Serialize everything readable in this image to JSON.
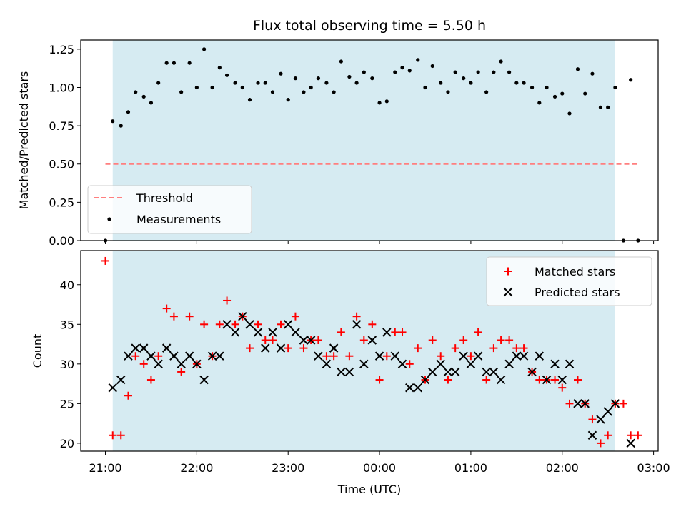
{
  "chart_data": [
    {
      "type": "scatter",
      "title": "Flux total observing time = 5.50 h",
      "xlabel": "",
      "ylabel": "Matched/Predicted stars",
      "ylim": [
        0,
        1.31
      ],
      "yticks": [
        "0.00",
        "0.25",
        "0.50",
        "0.75",
        "1.00",
        "1.25"
      ],
      "xlim_hours": [
        20.73,
        27.05
      ],
      "shaded_interval_hours": [
        21.08,
        26.58
      ],
      "legend": {
        "placement": "lower-left",
        "entries": [
          "Threshold",
          "Measurements"
        ]
      },
      "threshold": {
        "name": "Threshold",
        "value": 0.5,
        "x_range_hours": [
          21.0,
          26.83
        ],
        "color": "#ff7f7f",
        "style": "dashed"
      },
      "series": [
        {
          "name": "Measurements",
          "color": "#000000",
          "points": [
            [
              21.0,
              0.0
            ],
            [
              21.08,
              0.78
            ],
            [
              21.17,
              0.75
            ],
            [
              21.25,
              0.84
            ],
            [
              21.33,
              0.97
            ],
            [
              21.42,
              0.94
            ],
            [
              21.5,
              0.9
            ],
            [
              21.58,
              1.03
            ],
            [
              21.67,
              1.16
            ],
            [
              21.75,
              1.16
            ],
            [
              21.83,
              0.97
            ],
            [
              21.92,
              1.16
            ],
            [
              22.0,
              1.0
            ],
            [
              22.08,
              1.25
            ],
            [
              22.17,
              1.0
            ],
            [
              22.25,
              1.13
            ],
            [
              22.33,
              1.08
            ],
            [
              22.42,
              1.03
            ],
            [
              22.5,
              1.0
            ],
            [
              22.58,
              0.92
            ],
            [
              22.67,
              1.03
            ],
            [
              22.75,
              1.03
            ],
            [
              22.83,
              0.97
            ],
            [
              22.92,
              1.09
            ],
            [
              23.0,
              0.92
            ],
            [
              23.08,
              1.06
            ],
            [
              23.17,
              0.97
            ],
            [
              23.25,
              1.0
            ],
            [
              23.33,
              1.06
            ],
            [
              23.42,
              1.03
            ],
            [
              23.5,
              0.97
            ],
            [
              23.58,
              1.17
            ],
            [
              23.67,
              1.07
            ],
            [
              23.75,
              1.03
            ],
            [
              23.83,
              1.1
            ],
            [
              23.92,
              1.06
            ],
            [
              24.0,
              0.9
            ],
            [
              24.08,
              0.91
            ],
            [
              24.17,
              1.1
            ],
            [
              24.25,
              1.13
            ],
            [
              24.33,
              1.11
            ],
            [
              24.42,
              1.18
            ],
            [
              24.5,
              1.0
            ],
            [
              24.58,
              1.14
            ],
            [
              24.67,
              1.03
            ],
            [
              24.75,
              0.97
            ],
            [
              24.83,
              1.1
            ],
            [
              24.92,
              1.06
            ],
            [
              25.0,
              1.03
            ],
            [
              25.08,
              1.1
            ],
            [
              25.17,
              0.97
            ],
            [
              25.25,
              1.1
            ],
            [
              25.33,
              1.17
            ],
            [
              25.42,
              1.1
            ],
            [
              25.5,
              1.03
            ],
            [
              25.58,
              1.03
            ],
            [
              25.67,
              1.0
            ],
            [
              25.75,
              0.9
            ],
            [
              25.83,
              1.0
            ],
            [
              25.92,
              0.94
            ],
            [
              26.0,
              0.96
            ],
            [
              26.08,
              0.83
            ],
            [
              26.17,
              1.12
            ],
            [
              26.25,
              0.96
            ],
            [
              26.33,
              1.09
            ],
            [
              26.42,
              0.87
            ],
            [
              26.5,
              0.87
            ],
            [
              26.58,
              1.0
            ],
            [
              26.67,
              0.0
            ],
            [
              26.75,
              1.05
            ],
            [
              26.83,
              0.0
            ]
          ]
        }
      ]
    },
    {
      "type": "scatter",
      "title": "",
      "xlabel": "Time (UTC)",
      "ylabel": "Count",
      "ylim": [
        19.0,
        44.3
      ],
      "yticks": [
        "20",
        "25",
        "30",
        "35",
        "40"
      ],
      "xticks": [
        "21:00",
        "22:00",
        "23:00",
        "00:00",
        "01:00",
        "02:00",
        "03:00"
      ],
      "xtick_hours": [
        21,
        22,
        23,
        24,
        25,
        26,
        27
      ],
      "xlim_hours": [
        20.73,
        27.05
      ],
      "shaded_interval_hours": [
        21.08,
        26.58
      ],
      "legend": {
        "placement": "top-right",
        "entries": [
          "Matched stars",
          "Predicted stars"
        ]
      },
      "series": [
        {
          "name": "Matched stars",
          "marker": "plus",
          "color": "#ff0000",
          "points": [
            [
              21.0,
              43
            ],
            [
              21.08,
              21
            ],
            [
              21.17,
              21
            ],
            [
              21.25,
              26
            ],
            [
              21.33,
              31
            ],
            [
              21.42,
              30
            ],
            [
              21.5,
              28
            ],
            [
              21.58,
              31
            ],
            [
              21.67,
              37
            ],
            [
              21.75,
              36
            ],
            [
              21.83,
              29
            ],
            [
              21.92,
              36
            ],
            [
              22.0,
              30
            ],
            [
              22.08,
              35
            ],
            [
              22.17,
              31
            ],
            [
              22.25,
              35
            ],
            [
              22.33,
              38
            ],
            [
              22.42,
              35
            ],
            [
              22.5,
              36
            ],
            [
              22.58,
              32
            ],
            [
              22.67,
              35
            ],
            [
              22.75,
              33
            ],
            [
              22.83,
              33
            ],
            [
              22.92,
              35
            ],
            [
              23.0,
              32
            ],
            [
              23.08,
              36
            ],
            [
              23.17,
              32
            ],
            [
              23.25,
              33
            ],
            [
              23.33,
              33
            ],
            [
              23.42,
              31
            ],
            [
              23.5,
              31
            ],
            [
              23.58,
              34
            ],
            [
              23.67,
              31
            ],
            [
              23.75,
              36
            ],
            [
              23.83,
              33
            ],
            [
              23.92,
              35
            ],
            [
              24.0,
              28
            ],
            [
              24.08,
              31
            ],
            [
              24.17,
              34
            ],
            [
              24.25,
              34
            ],
            [
              24.33,
              30
            ],
            [
              24.42,
              32
            ],
            [
              24.5,
              28
            ],
            [
              24.58,
              33
            ],
            [
              24.67,
              31
            ],
            [
              24.75,
              28
            ],
            [
              24.83,
              32
            ],
            [
              24.92,
              33
            ],
            [
              25.0,
              31
            ],
            [
              25.08,
              34
            ],
            [
              25.17,
              28
            ],
            [
              25.25,
              32
            ],
            [
              25.33,
              33
            ],
            [
              25.42,
              33
            ],
            [
              25.5,
              32
            ],
            [
              25.58,
              32
            ],
            [
              25.67,
              29
            ],
            [
              25.75,
              28
            ],
            [
              25.83,
              28
            ],
            [
              25.92,
              28
            ],
            [
              26.0,
              27
            ],
            [
              26.08,
              25
            ],
            [
              26.17,
              28
            ],
            [
              26.25,
              25
            ],
            [
              26.33,
              23
            ],
            [
              26.42,
              20
            ],
            [
              26.5,
              21
            ],
            [
              26.58,
              25
            ],
            [
              26.67,
              25
            ],
            [
              26.75,
              21
            ],
            [
              26.83,
              21
            ]
          ]
        },
        {
          "name": "Predicted stars",
          "marker": "x",
          "color": "#000000",
          "points": [
            [
              21.08,
              27
            ],
            [
              21.17,
              28
            ],
            [
              21.25,
              31
            ],
            [
              21.33,
              32
            ],
            [
              21.42,
              32
            ],
            [
              21.5,
              31
            ],
            [
              21.58,
              30
            ],
            [
              21.67,
              32
            ],
            [
              21.75,
              31
            ],
            [
              21.83,
              30
            ],
            [
              21.92,
              31
            ],
            [
              22.0,
              30
            ],
            [
              22.08,
              28
            ],
            [
              22.17,
              31
            ],
            [
              22.25,
              31
            ],
            [
              22.33,
              35
            ],
            [
              22.42,
              34
            ],
            [
              22.5,
              36
            ],
            [
              22.58,
              35
            ],
            [
              22.67,
              34
            ],
            [
              22.75,
              32
            ],
            [
              22.83,
              34
            ],
            [
              22.92,
              32
            ],
            [
              23.0,
              35
            ],
            [
              23.08,
              34
            ],
            [
              23.17,
              33
            ],
            [
              23.25,
              33
            ],
            [
              23.33,
              31
            ],
            [
              23.42,
              30
            ],
            [
              23.5,
              32
            ],
            [
              23.58,
              29
            ],
            [
              23.67,
              29
            ],
            [
              23.75,
              35
            ],
            [
              23.83,
              30
            ],
            [
              23.92,
              33
            ],
            [
              24.0,
              31
            ],
            [
              24.08,
              34
            ],
            [
              24.17,
              31
            ],
            [
              24.25,
              30
            ],
            [
              24.33,
              27
            ],
            [
              24.42,
              27
            ],
            [
              24.5,
              28
            ],
            [
              24.58,
              29
            ],
            [
              24.67,
              30
            ],
            [
              24.75,
              29
            ],
            [
              24.83,
              29
            ],
            [
              24.92,
              31
            ],
            [
              25.0,
              30
            ],
            [
              25.08,
              31
            ],
            [
              25.17,
              29
            ],
            [
              25.25,
              29
            ],
            [
              25.33,
              28
            ],
            [
              25.42,
              30
            ],
            [
              25.5,
              31
            ],
            [
              25.58,
              31
            ],
            [
              25.67,
              29
            ],
            [
              25.75,
              31
            ],
            [
              25.83,
              28
            ],
            [
              25.92,
              30
            ],
            [
              26.0,
              28
            ],
            [
              26.08,
              30
            ],
            [
              26.17,
              25
            ],
            [
              26.25,
              25
            ],
            [
              26.33,
              21
            ],
            [
              26.42,
              23
            ],
            [
              26.5,
              24
            ],
            [
              26.58,
              25
            ],
            [
              26.75,
              20
            ]
          ]
        }
      ]
    }
  ],
  "colors": {
    "shade": "#add8e6",
    "matched": "#ff0000",
    "predicted": "#000000",
    "threshold": "#ff7f7f"
  }
}
